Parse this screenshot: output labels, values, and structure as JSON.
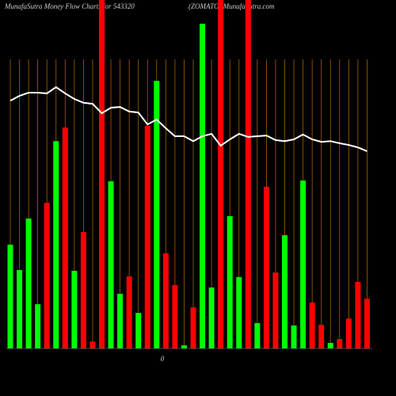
{
  "chart_data": {
    "type": "bar",
    "title": "MunafaSutra  Money Flow  Charts for 543320",
    "subtitle": "(ZOMATO) MunafaSutra.com",
    "xlabel": "0",
    "categories": [
      null,
      null,
      null,
      null,
      null,
      null,
      null,
      null,
      null,
      null,
      null,
      null,
      null,
      null,
      null,
      null,
      null,
      null,
      null,
      null,
      null,
      null,
      null,
      null,
      null,
      null,
      null,
      null,
      null,
      null,
      null,
      null,
      null,
      null,
      null,
      null,
      null,
      null,
      null,
      null
    ],
    "values": [
      29.8,
      22.5,
      37.3,
      12.7,
      41.8,
      59.5,
      63.4,
      22.3,
      33.4,
      2,
      100,
      48,
      15.7,
      20.7,
      10.2,
      63.9,
      76.8,
      27.3,
      18.2,
      0.9,
      11.8,
      93.2,
      17.5,
      100,
      38,
      20.5,
      100,
      7.3,
      46.4,
      21.8,
      32.5,
      6.6,
      48.2,
      13.2,
      6.8,
      1.6,
      2.7,
      8.6,
      19.1,
      14.3
    ],
    "colors": [
      "#00ff00",
      "#00ff00",
      "#00ff00",
      "#00ff00",
      "#ff0000",
      "#00ff00",
      "#ff0000",
      "#00ff00",
      "#ff0000",
      "#ff0000",
      "#ff0000",
      "#00ff00",
      "#00ff00",
      "#ff0000",
      "#00ff00",
      "#ff0000",
      "#00ff00",
      "#ff0000",
      "#ff0000",
      "#00ff00",
      "#ff0000",
      "#00ff00",
      "#00ff00",
      "#ff0000",
      "#00ff00",
      "#00ff00",
      "#ff0000",
      "#00ff00",
      "#ff0000",
      "#ff0000",
      "#00ff00",
      "#00ff00",
      "#00ff00",
      "#ff0000",
      "#ff0000",
      "#00ff00",
      "#ff0000",
      "#ff0000",
      "#ff0000",
      "#ff0000"
    ],
    "line": {
      "color": "#ffffff",
      "values": [
        71.1,
        72.5,
        73.4,
        73.4,
        73.2,
        75,
        73.2,
        71.6,
        70.5,
        70.2,
        67.5,
        69.1,
        69.3,
        68,
        67.7,
        64.3,
        65.7,
        63.2,
        60.9,
        60.9,
        59.5,
        60.9,
        61.6,
        58.2,
        60,
        61.6,
        60.7,
        60.9,
        61.1,
        59.8,
        59.5,
        60,
        61.4,
        60,
        59.3,
        59.5,
        58.9,
        58.4,
        57.7,
        56.6
      ]
    },
    "ylim": [
      0,
      100
    ],
    "grid": true,
    "grid_color": "#a65f00"
  }
}
